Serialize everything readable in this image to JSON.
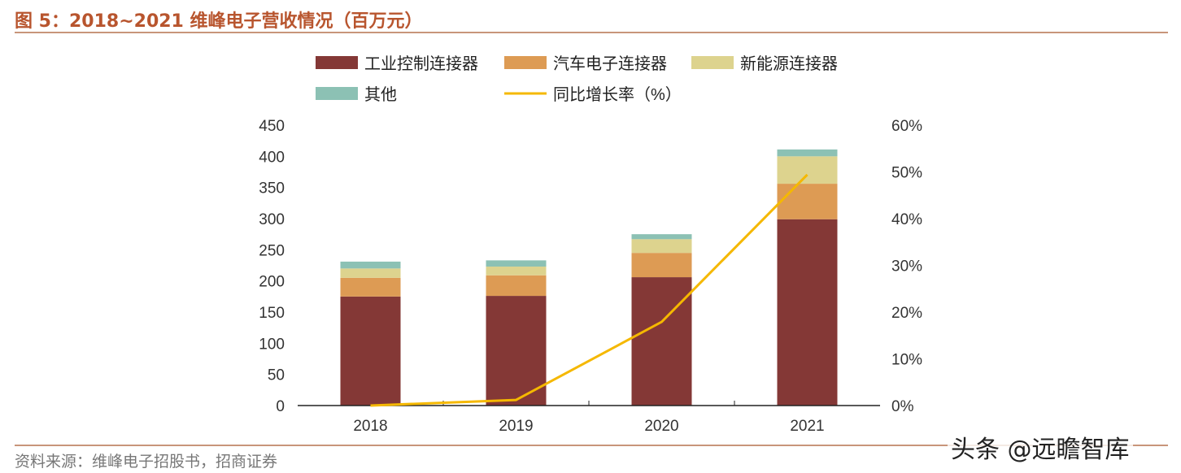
{
  "title": "图 5：2018~2021 维峰电子营收情况（百万元）",
  "source": "资料来源：维峰电子招股书，招商证券",
  "watermark": "头条 @远瞻智库",
  "chart_data": {
    "type": "bar",
    "stacked": true,
    "categories": [
      "2018",
      "2019",
      "2020",
      "2021"
    ],
    "series": [
      {
        "name": "工业控制连接器",
        "color": "#843836",
        "values": [
          175,
          176,
          206,
          299
        ]
      },
      {
        "name": "汽车电子连接器",
        "color": "#dd9b54",
        "values": [
          30,
          33,
          39,
          57
        ]
      },
      {
        "name": "新能源连接器",
        "color": "#ddd38e",
        "values": [
          15,
          14,
          22,
          44
        ]
      },
      {
        "name": "其他",
        "color": "#8cc1b4",
        "values": [
          11,
          10,
          8,
          11
        ]
      }
    ],
    "line_series": {
      "name": "同比增长率（%）",
      "color": "#f5b800",
      "axis": "right",
      "values": [
        0,
        1.2,
        17.9,
        49.4
      ]
    },
    "ylim": [
      0,
      450
    ],
    "yticks": [
      "0",
      "50",
      "100",
      "150",
      "200",
      "250",
      "300",
      "350",
      "400",
      "450"
    ],
    "y2lim": [
      0,
      60
    ],
    "y2ticks": [
      "0%",
      "10%",
      "20%",
      "30%",
      "40%",
      "50%",
      "60%"
    ],
    "grid": false,
    "legend": "top"
  }
}
